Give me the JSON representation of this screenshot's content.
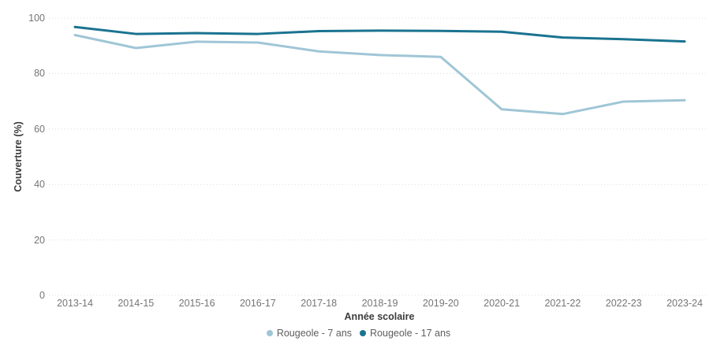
{
  "chart": {
    "y_axis_title": "Couverture (%)",
    "x_axis_title": "Année scolaire"
  },
  "chart_data": {
    "type": "line",
    "title": "",
    "xlabel": "Année scolaire",
    "ylabel": "Couverture (%)",
    "categories": [
      "2013-14",
      "2014-15",
      "2015-16",
      "2016-17",
      "2017-18",
      "2018-19",
      "2019-20",
      "2020-21",
      "2021-22",
      "2022-23",
      "2023-24"
    ],
    "series": [
      {
        "name": "Rougeole - 7 ans",
        "color": "#9fc6d6",
        "values": [
          93.9,
          89.2,
          91.5,
          91.2,
          88.0,
          86.7,
          86.0,
          67.1,
          65.4,
          69.9,
          70.4
        ]
      },
      {
        "name": "Rougeole - 17 ans",
        "color": "#1a7390",
        "values": [
          96.8,
          94.3,
          94.6,
          94.3,
          95.3,
          95.5,
          95.4,
          95.1,
          93.0,
          92.4,
          91.6
        ]
      }
    ],
    "ylim": [
      0,
      100
    ],
    "y_ticks": [
      0,
      20,
      40,
      60,
      80,
      100
    ],
    "grid": "horizontal-dotted",
    "legend_position": "bottom",
    "colors": {
      "grid": "#dcdcdc",
      "tick_text": "#757575",
      "axis_title_text": "#3c3c3c",
      "legend_text": "#5e5e5e",
      "background": "#ffffff"
    }
  }
}
